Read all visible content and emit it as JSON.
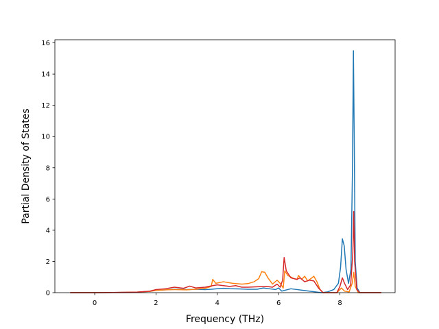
{
  "chart_data": {
    "type": "line",
    "title": "",
    "xlabel": "Frequency (THz)",
    "ylabel": "Partial Density of States",
    "xlim": [
      -1.3,
      9.8
    ],
    "ylim": [
      0,
      16.2
    ],
    "xticks": [
      0,
      2,
      4,
      6,
      8
    ],
    "yticks": [
      0,
      2,
      4,
      6,
      8,
      10,
      12,
      14,
      16
    ],
    "grid": false,
    "legend": "none",
    "series": [
      {
        "color": "#1f77b4",
        "points": [
          [
            -0.8,
            0
          ],
          [
            0.0,
            0
          ],
          [
            0.6,
            0.01
          ],
          [
            1.0,
            0.02
          ],
          [
            1.4,
            0.04
          ],
          [
            1.8,
            0.08
          ],
          [
            2.0,
            0.15
          ],
          [
            2.3,
            0.18
          ],
          [
            2.6,
            0.22
          ],
          [
            3.0,
            0.2
          ],
          [
            3.3,
            0.22
          ],
          [
            3.6,
            0.2
          ],
          [
            3.8,
            0.22
          ],
          [
            4.0,
            0.25
          ],
          [
            4.2,
            0.28
          ],
          [
            4.4,
            0.25
          ],
          [
            4.7,
            0.24
          ],
          [
            5.0,
            0.22
          ],
          [
            5.3,
            0.22
          ],
          [
            5.5,
            0.3
          ],
          [
            5.7,
            0.25
          ],
          [
            5.9,
            0.2
          ],
          [
            6.0,
            0.3
          ],
          [
            6.1,
            0.1
          ],
          [
            6.2,
            0.15
          ],
          [
            6.4,
            0.25
          ],
          [
            6.6,
            0.2
          ],
          [
            6.8,
            0.15
          ],
          [
            7.0,
            0.1
          ],
          [
            7.2,
            0.05
          ],
          [
            7.4,
            0.0
          ],
          [
            7.6,
            0.05
          ],
          [
            7.8,
            0.2
          ],
          [
            7.95,
            0.6
          ],
          [
            8.02,
            1.6
          ],
          [
            8.08,
            3.45
          ],
          [
            8.14,
            3.0
          ],
          [
            8.2,
            1.5
          ],
          [
            8.28,
            0.6
          ],
          [
            8.36,
            1.5
          ],
          [
            8.41,
            8.0
          ],
          [
            8.44,
            15.5
          ],
          [
            8.47,
            9.0
          ],
          [
            8.5,
            2.0
          ],
          [
            8.56,
            0.3
          ],
          [
            8.65,
            0.0
          ],
          [
            9.35,
            0.0
          ]
        ]
      },
      {
        "color": "#ff7f0e",
        "points": [
          [
            -0.8,
            0
          ],
          [
            0.0,
            0
          ],
          [
            0.6,
            0.01
          ],
          [
            1.0,
            0.02
          ],
          [
            1.4,
            0.04
          ],
          [
            1.8,
            0.08
          ],
          [
            2.0,
            0.15
          ],
          [
            2.3,
            0.18
          ],
          [
            2.6,
            0.2
          ],
          [
            3.0,
            0.18
          ],
          [
            3.3,
            0.22
          ],
          [
            3.6,
            0.28
          ],
          [
            3.8,
            0.4
          ],
          [
            3.85,
            0.85
          ],
          [
            3.95,
            0.6
          ],
          [
            4.2,
            0.7
          ],
          [
            4.5,
            0.6
          ],
          [
            4.8,
            0.55
          ],
          [
            5.0,
            0.58
          ],
          [
            5.2,
            0.7
          ],
          [
            5.35,
            0.9
          ],
          [
            5.45,
            1.35
          ],
          [
            5.55,
            1.3
          ],
          [
            5.65,
            0.95
          ],
          [
            5.8,
            0.55
          ],
          [
            5.95,
            0.8
          ],
          [
            6.05,
            0.6
          ],
          [
            6.15,
            0.3
          ],
          [
            6.2,
            1.4
          ],
          [
            6.3,
            1.1
          ],
          [
            6.5,
            0.9
          ],
          [
            6.6,
            0.85
          ],
          [
            6.65,
            1.1
          ],
          [
            6.75,
            0.85
          ],
          [
            6.85,
            1.05
          ],
          [
            6.95,
            0.75
          ],
          [
            7.05,
            0.9
          ],
          [
            7.15,
            1.05
          ],
          [
            7.25,
            0.7
          ],
          [
            7.35,
            0.2
          ],
          [
            7.45,
            0.0
          ],
          [
            7.9,
            0.0
          ],
          [
            8.05,
            0.3
          ],
          [
            8.15,
            0.1
          ],
          [
            8.3,
            0.05
          ],
          [
            8.4,
            0.6
          ],
          [
            8.45,
            1.3
          ],
          [
            8.5,
            0.4
          ],
          [
            8.6,
            0.0
          ],
          [
            9.35,
            0.0
          ]
        ]
      },
      {
        "color": "#d62728",
        "points": [
          [
            -0.8,
            0
          ],
          [
            0.0,
            0
          ],
          [
            0.6,
            0.01
          ],
          [
            1.0,
            0.02
          ],
          [
            1.4,
            0.04
          ],
          [
            1.8,
            0.1
          ],
          [
            2.0,
            0.2
          ],
          [
            2.3,
            0.25
          ],
          [
            2.6,
            0.35
          ],
          [
            2.9,
            0.28
          ],
          [
            3.1,
            0.42
          ],
          [
            3.3,
            0.3
          ],
          [
            3.6,
            0.35
          ],
          [
            3.85,
            0.45
          ],
          [
            4.0,
            0.5
          ],
          [
            4.2,
            0.45
          ],
          [
            4.4,
            0.4
          ],
          [
            4.6,
            0.45
          ],
          [
            4.8,
            0.35
          ],
          [
            5.0,
            0.35
          ],
          [
            5.3,
            0.38
          ],
          [
            5.6,
            0.4
          ],
          [
            5.8,
            0.35
          ],
          [
            5.95,
            0.55
          ],
          [
            6.05,
            0.35
          ],
          [
            6.13,
            0.8
          ],
          [
            6.18,
            2.25
          ],
          [
            6.25,
            1.4
          ],
          [
            6.4,
            0.95
          ],
          [
            6.6,
            0.85
          ],
          [
            6.7,
            0.95
          ],
          [
            6.85,
            0.7
          ],
          [
            7.0,
            0.8
          ],
          [
            7.15,
            0.75
          ],
          [
            7.3,
            0.3
          ],
          [
            7.45,
            0.0
          ],
          [
            7.9,
            0.0
          ],
          [
            8.0,
            0.4
          ],
          [
            8.08,
            0.95
          ],
          [
            8.15,
            0.6
          ],
          [
            8.25,
            0.2
          ],
          [
            8.35,
            0.5
          ],
          [
            8.42,
            2.5
          ],
          [
            8.45,
            5.2
          ],
          [
            8.48,
            2.0
          ],
          [
            8.55,
            0.2
          ],
          [
            8.65,
            0.0
          ],
          [
            9.35,
            0.0
          ]
        ]
      }
    ]
  }
}
